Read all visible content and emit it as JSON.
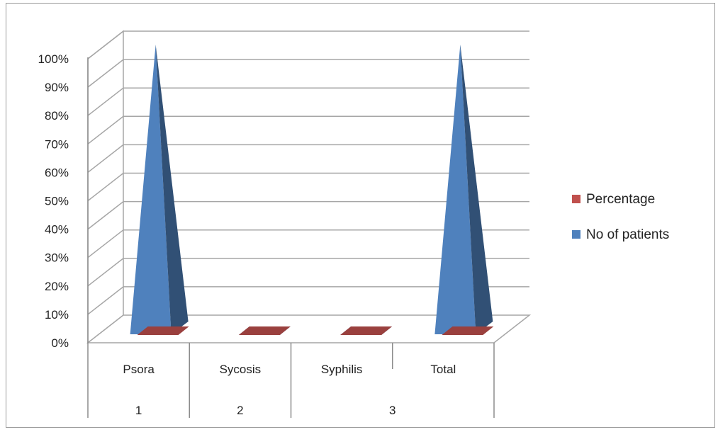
{
  "chart_data": {
    "type": "bar",
    "style": "3d-pyramid",
    "categories": [
      {
        "label": "Psora",
        "group": "1"
      },
      {
        "label": "Sycosis",
        "group": "2"
      },
      {
        "label": "Syphilis",
        "group": "3"
      },
      {
        "label": "Total",
        "group": "3"
      }
    ],
    "groups": [
      {
        "label": "1",
        "span": [
          0,
          0
        ]
      },
      {
        "label": "2",
        "span": [
          1,
          1
        ]
      },
      {
        "label": "3",
        "span": [
          2,
          3
        ]
      }
    ],
    "series": [
      {
        "name": "No of patients",
        "color": "#4F81BD",
        "values": [
          100,
          0,
          0,
          100
        ]
      },
      {
        "name": "Percentage",
        "color": "#C0504D",
        "values": [
          0,
          0,
          0,
          0
        ]
      }
    ],
    "legend_order": [
      "Percentage",
      "No of patients"
    ],
    "y_tick_labels": [
      "0%",
      "10%",
      "20%",
      "30%",
      "40%",
      "50%",
      "60%",
      "70%",
      "80%",
      "90%",
      "100%"
    ],
    "ylim": [
      0,
      100
    ],
    "grid": true,
    "legend_position": "right",
    "title": "",
    "xlabel": "",
    "ylabel": ""
  }
}
